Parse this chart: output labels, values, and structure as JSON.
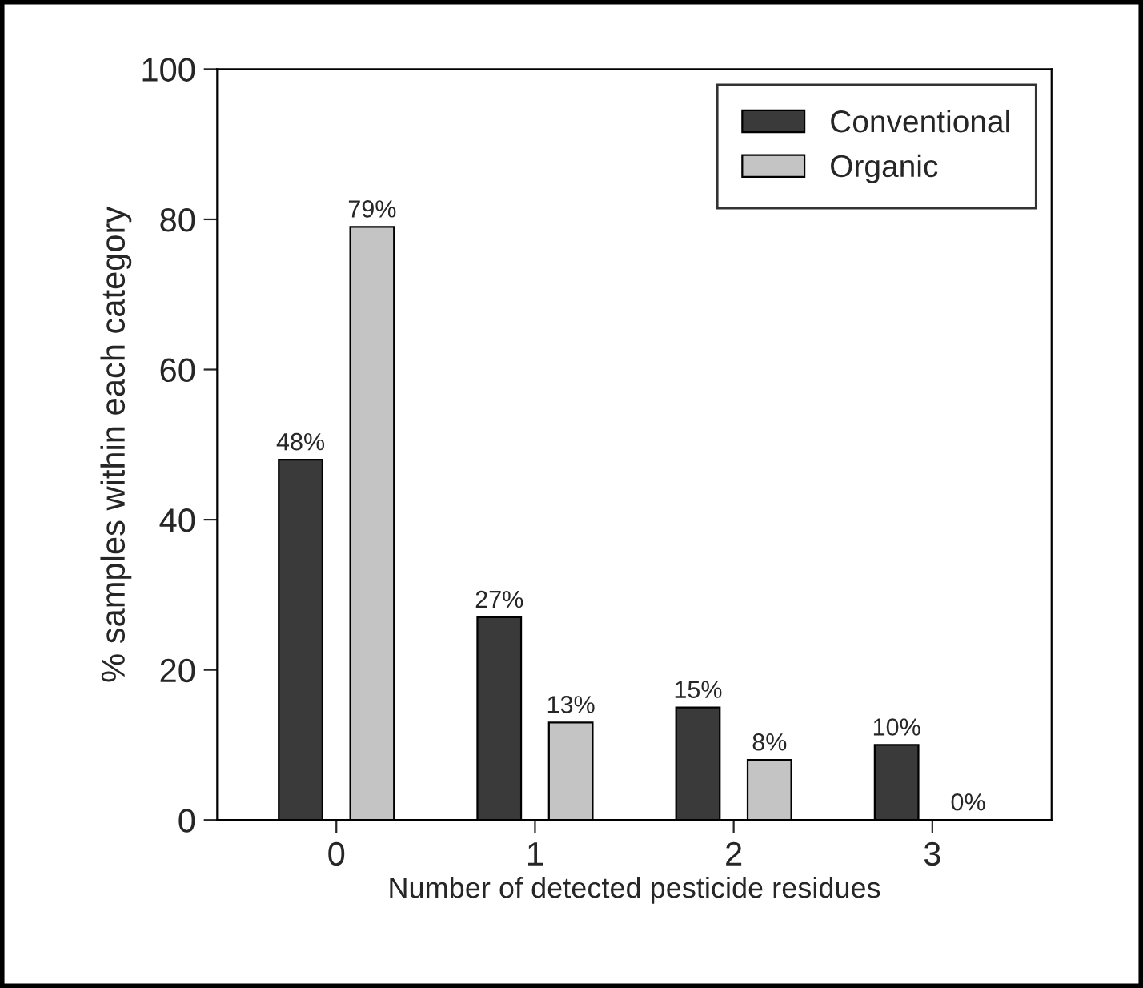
{
  "chart_data": {
    "type": "bar",
    "xlabel": "Number of detected pesticide residues",
    "ylabel": "% samples within each category",
    "categories": [
      "0",
      "1",
      "2",
      "3"
    ],
    "series": [
      {
        "name": "Conventional",
        "color": "#3a3a3a",
        "values": [
          48,
          27,
          15,
          10
        ],
        "value_labels": [
          "48%",
          "27%",
          "15%",
          "10%"
        ]
      },
      {
        "name": "Organic",
        "color": "#c4c4c4",
        "values": [
          79,
          13,
          8,
          0
        ],
        "value_labels": [
          "79%",
          "13%",
          "8%",
          "0%"
        ]
      }
    ],
    "ylim": [
      0,
      100
    ],
    "yticks": [
      0,
      20,
      40,
      60,
      80,
      100
    ],
    "grid": false,
    "legend": "top right"
  }
}
